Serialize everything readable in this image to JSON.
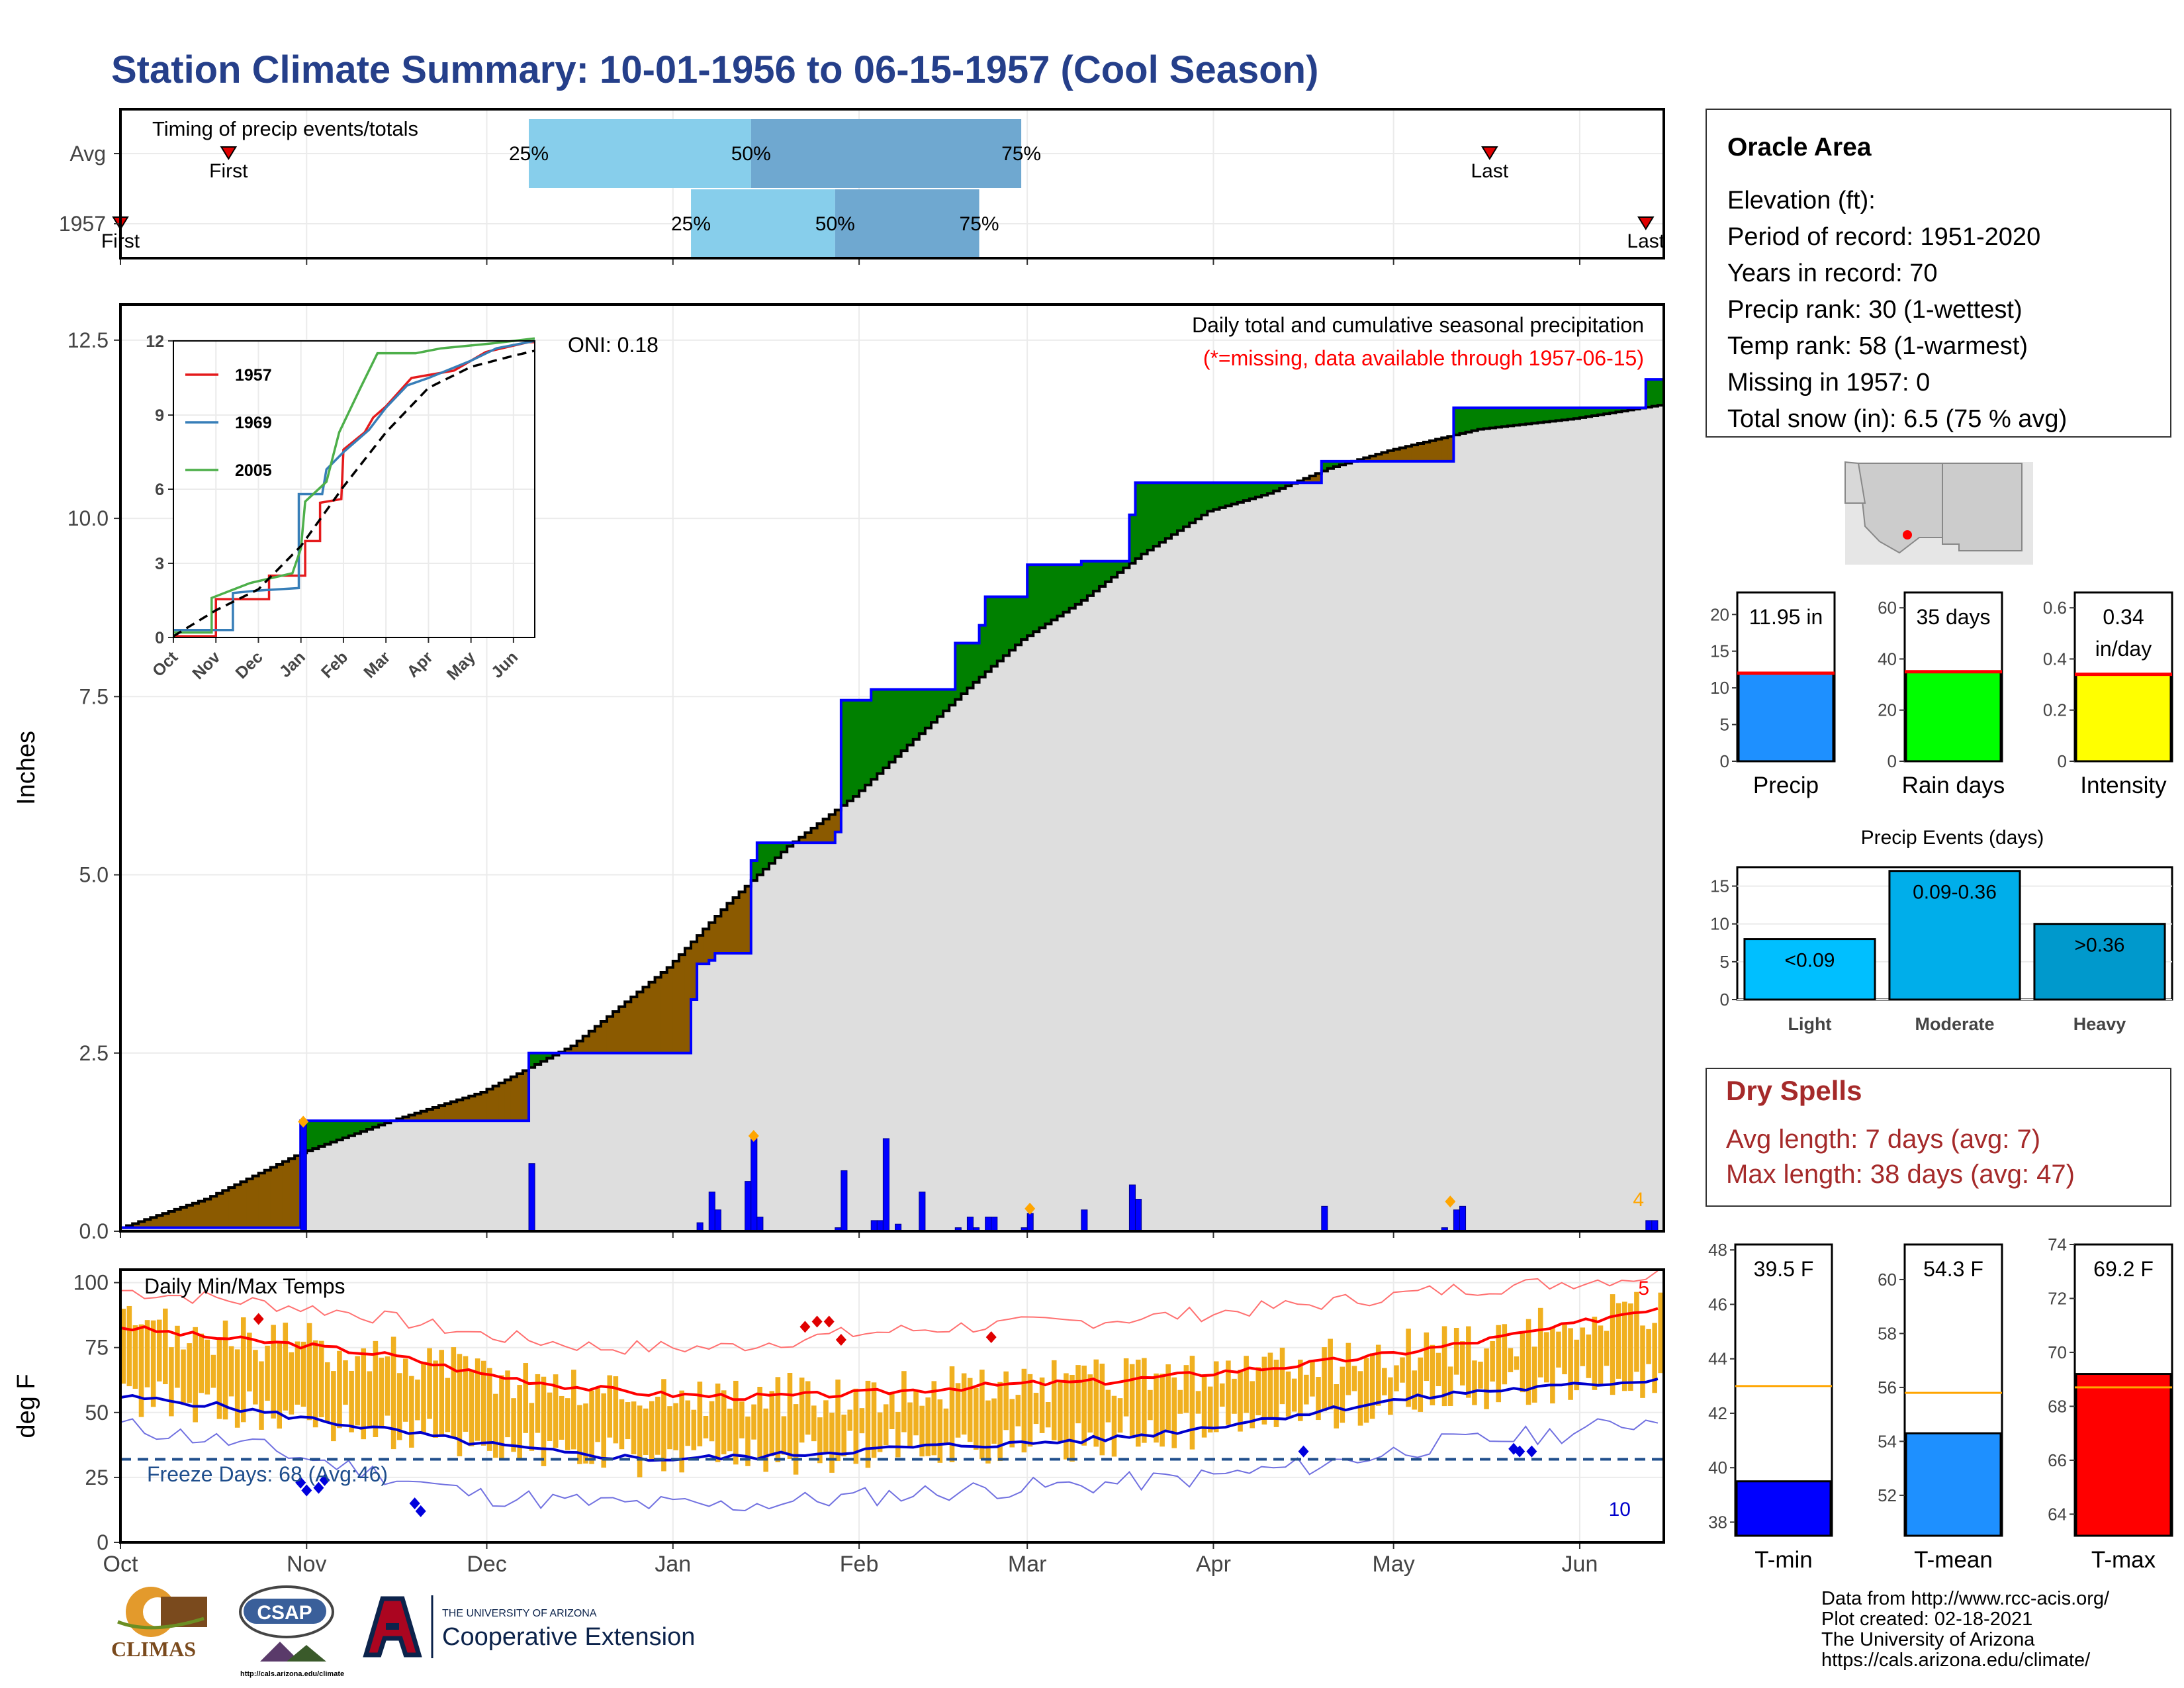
{
  "title": "Station Climate Summary: 10-01-1956 to 06-15-1957 (Cool Season)",
  "colors": {
    "title": "#253f8a",
    "cumulative_fill": "#dedede",
    "surplus": "#008000",
    "deficit": "#8b5a00",
    "obs_line": "#0000ff",
    "temp_bar": "#f0b020",
    "avg_max": "#ff0000",
    "avg_min": "#0000cc",
    "record_max": "#ff7070",
    "record_min": "#7070e0",
    "freeze_line": "#1f4e8c",
    "q_light": "#87ceeb",
    "q_dark": "#6fa8d0"
  },
  "months": [
    "Oct",
    "Nov",
    "Dec",
    "Jan",
    "Feb",
    "Mar",
    "Apr",
    "May",
    "Jun"
  ],
  "chart_data": [
    {
      "id": "timing",
      "type": "bar",
      "label": "Timing of precip events/totals",
      "rows": [
        {
          "name": "Avg",
          "first": "Oct 19",
          "last": "May 17",
          "q25": "Dec 8",
          "q50": "Jan 14",
          "q75": "Feb 28"
        },
        {
          "name": "1957",
          "first": "Oct 1",
          "last": "Jun 12",
          "q25": "Jan 4",
          "q50": "Jan 28",
          "q75": "Feb 21"
        }
      ],
      "marker_labels": {
        "first": "First",
        "last": "Last",
        "q25": "25%",
        "q50": "50%",
        "q75": "75%"
      }
    },
    {
      "id": "precip",
      "type": "area",
      "title": "Daily total and cumulative seasonal precipitation",
      "subtitle": "(*=missing, data available through 1957-06-15)",
      "ylabel": "Inches",
      "ylim": [
        0,
        13
      ],
      "yticks": [
        0.0,
        2.5,
        5.0,
        7.5,
        10.0,
        12.5
      ],
      "oni": "ONI: 0.18",
      "avg_cumulative": [
        [
          "1956-10-01",
          0.05
        ],
        [
          "1956-10-15",
          0.45
        ],
        [
          "1956-10-31",
          1.1
        ],
        [
          "1956-11-15",
          1.55
        ],
        [
          "1956-11-30",
          1.95
        ],
        [
          "1956-12-15",
          2.6
        ],
        [
          "1956-12-31",
          3.7
        ],
        [
          "1957-01-10",
          4.6
        ],
        [
          "1957-01-20",
          5.4
        ],
        [
          "1957-01-31",
          6.1
        ],
        [
          "1957-02-10",
          6.9
        ],
        [
          "1957-02-20",
          7.7
        ],
        [
          "1957-02-28",
          8.3
        ],
        [
          "1957-03-10",
          8.85
        ],
        [
          "1957-03-20",
          9.5
        ],
        [
          "1957-03-31",
          10.1
        ],
        [
          "1957-04-10",
          10.35
        ],
        [
          "1957-04-20",
          10.7
        ],
        [
          "1957-04-30",
          10.95
        ],
        [
          "1957-05-15",
          11.25
        ],
        [
          "1957-05-31",
          11.4
        ],
        [
          "1957-06-15",
          11.6
        ]
      ],
      "obs_cumulative": [
        [
          "1956-10-01",
          0.05
        ],
        [
          "1956-10-30",
          0.05
        ],
        [
          "1956-10-31",
          1.55
        ],
        [
          "1956-11-30",
          1.55
        ],
        [
          "1956-12-07",
          1.55
        ],
        [
          "1956-12-08",
          2.5
        ],
        [
          "1957-01-03",
          2.5
        ],
        [
          "1957-01-04",
          3.25
        ],
        [
          "1957-01-05",
          3.75
        ],
        [
          "1957-01-07",
          3.8
        ],
        [
          "1957-01-08",
          3.9
        ],
        [
          "1957-01-13",
          3.9
        ],
        [
          "1957-01-14",
          5.2
        ],
        [
          "1957-01-15",
          5.45
        ],
        [
          "1957-01-20",
          5.45
        ],
        [
          "1957-01-28",
          5.6
        ],
        [
          "1957-01-29",
          7.45
        ],
        [
          "1957-02-03",
          7.6
        ],
        [
          "1957-02-04",
          7.6
        ],
        [
          "1957-02-16",
          7.6
        ],
        [
          "1957-02-17",
          8.25
        ],
        [
          "1957-02-21",
          8.5
        ],
        [
          "1957-02-22",
          8.9
        ],
        [
          "1957-02-28",
          8.9
        ],
        [
          "1957-03-01",
          9.35
        ],
        [
          "1957-03-09",
          9.35
        ],
        [
          "1957-03-10",
          9.4
        ],
        [
          "1957-03-17",
          9.4
        ],
        [
          "1957-03-18",
          10.05
        ],
        [
          "1957-03-19",
          10.5
        ],
        [
          "1957-04-18",
          10.5
        ],
        [
          "1957-04-19",
          10.8
        ],
        [
          "1957-05-10",
          10.8
        ],
        [
          "1957-05-11",
          11.55
        ],
        [
          "1957-06-11",
          11.55
        ],
        [
          "1957-06-12",
          11.95
        ],
        [
          "1957-06-15",
          11.95
        ]
      ],
      "daily": [
        [
          "1956-10-31",
          1.5
        ],
        [
          "1956-12-08",
          0.95
        ],
        [
          "1957-01-05",
          0.12
        ],
        [
          "1957-01-07",
          0.55
        ],
        [
          "1957-01-08",
          0.3
        ],
        [
          "1957-01-13",
          0.7
        ],
        [
          "1957-01-14",
          1.3
        ],
        [
          "1957-01-15",
          0.2
        ],
        [
          "1957-01-28",
          0.05
        ],
        [
          "1957-01-29",
          0.85
        ],
        [
          "1957-02-03",
          0.15
        ],
        [
          "1957-02-04",
          0.15
        ],
        [
          "1957-02-05",
          1.3
        ],
        [
          "1957-02-07",
          0.1
        ],
        [
          "1957-02-11",
          0.55
        ],
        [
          "1957-02-17",
          0.05
        ],
        [
          "1957-02-19",
          0.2
        ],
        [
          "1957-02-20",
          0.05
        ],
        [
          "1957-02-22",
          0.2
        ],
        [
          "1957-02-23",
          0.2
        ],
        [
          "1957-02-28",
          0.05
        ],
        [
          "1957-03-01",
          0.25
        ],
        [
          "1957-03-10",
          0.3
        ],
        [
          "1957-03-18",
          0.65
        ],
        [
          "1957-03-19",
          0.45
        ],
        [
          "1957-04-19",
          0.35
        ],
        [
          "1957-05-09",
          0.05
        ],
        [
          "1957-05-11",
          0.3
        ],
        [
          "1957-05-12",
          0.35
        ],
        [
          "1957-06-12",
          0.15
        ],
        [
          "1957-06-13",
          0.15
        ]
      ],
      "corner_count": "4",
      "inset": {
        "type": "line",
        "ylim": [
          0,
          12
        ],
        "yticks": [
          0,
          3,
          6,
          9,
          12
        ],
        "series": [
          {
            "name": "1957",
            "color": "#e41a1c",
            "points": [
              [
                0,
                0.05
              ],
              [
                1,
                0.05
              ],
              [
                1,
                1.55
              ],
              [
                2,
                1.55
              ],
              [
                2.25,
                1.55
              ],
              [
                2.25,
                2.5
              ],
              [
                3.1,
                2.5
              ],
              [
                3.1,
                3.9
              ],
              [
                3.45,
                3.9
              ],
              [
                3.45,
                5.45
              ],
              [
                3.95,
                5.6
              ],
              [
                4,
                7.6
              ],
              [
                4.5,
                8.3
              ],
              [
                4.7,
                8.9
              ],
              [
                5,
                9.35
              ],
              [
                5.6,
                10.5
              ],
              [
                6.6,
                10.8
              ],
              [
                7.35,
                11.55
              ],
              [
                8.35,
                11.95
              ],
              [
                8.5,
                11.95
              ]
            ]
          },
          {
            "name": "1969",
            "color": "#377eb8",
            "points": [
              [
                0,
                0.3
              ],
              [
                1.4,
                0.3
              ],
              [
                1.4,
                1.8
              ],
              [
                2,
                1.9
              ],
              [
                2.95,
                2.0
              ],
              [
                2.95,
                5.8
              ],
              [
                3.5,
                5.8
              ],
              [
                3.6,
                6.8
              ],
              [
                4,
                7.5
              ],
              [
                4.6,
                8.4
              ],
              [
                5,
                9.3
              ],
              [
                5.5,
                10.2
              ],
              [
                6,
                10.5
              ],
              [
                7,
                11.2
              ],
              [
                7.6,
                11.7
              ],
              [
                8.5,
                12.0
              ]
            ]
          },
          {
            "name": "2005",
            "color": "#4daf4a",
            "points": [
              [
                0,
                0.2
              ],
              [
                0.9,
                0.2
              ],
              [
                0.9,
                1.6
              ],
              [
                1.8,
                2.2
              ],
              [
                2.8,
                2.6
              ],
              [
                3,
                3.6
              ],
              [
                3.1,
                5.5
              ],
              [
                3.6,
                6.3
              ],
              [
                3.9,
                8.3
              ],
              [
                4.4,
                10.1
              ],
              [
                4.8,
                11.5
              ],
              [
                5.7,
                11.5
              ],
              [
                6.3,
                11.7
              ],
              [
                6.9,
                11.8
              ],
              [
                7.5,
                11.9
              ],
              [
                8.5,
                12.1
              ]
            ]
          }
        ],
        "avg_points": [
          [
            0,
            0.05
          ],
          [
            1,
            1.1
          ],
          [
            2,
            1.95
          ],
          [
            3,
            3.7
          ],
          [
            4,
            6.1
          ],
          [
            5,
            8.3
          ],
          [
            6,
            10.1
          ],
          [
            7,
            10.95
          ],
          [
            8,
            11.4
          ],
          [
            8.5,
            11.6
          ]
        ]
      }
    },
    {
      "id": "temps",
      "type": "bar",
      "label": "Daily Min/Max Temps",
      "ylabel": "deg F",
      "ylim": [
        0,
        105
      ],
      "yticks": [
        0,
        25,
        50,
        75,
        100
      ],
      "freeze_label": "Freeze Days: 68 (Avg:46)",
      "freeze_threshold": 32,
      "count_top": "5",
      "count_bottom": "10",
      "avg_max_points": [
        [
          0,
          83
        ],
        [
          15,
          79
        ],
        [
          30,
          76
        ],
        [
          45,
          72
        ],
        [
          60,
          65
        ],
        [
          75,
          60
        ],
        [
          90,
          57
        ],
        [
          105,
          56
        ],
        [
          120,
          57
        ],
        [
          135,
          59
        ],
        [
          150,
          61
        ],
        [
          165,
          62
        ],
        [
          180,
          65
        ],
        [
          195,
          68
        ],
        [
          210,
          72
        ],
        [
          225,
          77
        ],
        [
          240,
          83
        ],
        [
          250,
          88
        ],
        [
          257,
          91
        ]
      ],
      "avg_min_points": [
        [
          0,
          56
        ],
        [
          15,
          53
        ],
        [
          30,
          48
        ],
        [
          45,
          43
        ],
        [
          60,
          38
        ],
        [
          75,
          34
        ],
        [
          90,
          32
        ],
        [
          105,
          33
        ],
        [
          120,
          35
        ],
        [
          135,
          37
        ],
        [
          150,
          38
        ],
        [
          165,
          40
        ],
        [
          180,
          44
        ],
        [
          195,
          49
        ],
        [
          210,
          54
        ],
        [
          225,
          58
        ],
        [
          240,
          60
        ],
        [
          257,
          63
        ]
      ],
      "record_max_points": [
        [
          0,
          97
        ],
        [
          20,
          93
        ],
        [
          40,
          88
        ],
        [
          60,
          80
        ],
        [
          80,
          75
        ],
        [
          100,
          75
        ],
        [
          120,
          80
        ],
        [
          140,
          83
        ],
        [
          160,
          85
        ],
        [
          180,
          88
        ],
        [
          200,
          92
        ],
        [
          220,
          97
        ],
        [
          240,
          100
        ],
        [
          257,
          103
        ]
      ],
      "record_min_points": [
        [
          0,
          45
        ],
        [
          20,
          38
        ],
        [
          40,
          28
        ],
        [
          60,
          18
        ],
        [
          80,
          15
        ],
        [
          100,
          14
        ],
        [
          120,
          17
        ],
        [
          140,
          20
        ],
        [
          160,
          22
        ],
        [
          180,
          25
        ],
        [
          200,
          30
        ],
        [
          220,
          38
        ],
        [
          240,
          42
        ],
        [
          257,
          48
        ]
      ]
    },
    {
      "id": "precip_summary",
      "type": "bar",
      "bars": [
        {
          "name": "Precip",
          "value": 11.95,
          "avg": 12.0,
          "label": "11.95 in",
          "ylim": [
            0,
            23
          ],
          "yticks": [
            0,
            5,
            10,
            15,
            20
          ],
          "color": "#1e90ff"
        },
        {
          "name": "Rain days",
          "value": 35,
          "avg": 35,
          "label": "35 days",
          "ylim": [
            0,
            66
          ],
          "yticks": [
            0,
            20,
            40,
            60
          ],
          "color": "#00ff00"
        },
        {
          "name": "Intensity",
          "value": 0.34,
          "avg": 0.34,
          "label": "0.34",
          "label2": "in/day",
          "ylim": [
            0,
            0.66
          ],
          "yticks": [
            0.0,
            0.2,
            0.4,
            0.6
          ],
          "color": "#ffff00"
        }
      ]
    },
    {
      "id": "precip_events",
      "type": "bar",
      "title": "Precip Events (days)",
      "categories": [
        "Light",
        "Moderate",
        "Heavy"
      ],
      "values": [
        8,
        17,
        10
      ],
      "bar_labels": [
        "<0.09",
        "0.09-0.36",
        ">0.36"
      ],
      "ylim": [
        0,
        17.5
      ],
      "yticks": [
        0,
        5,
        10,
        15
      ],
      "colors": [
        "#00bfff",
        "#00aeea",
        "#0099cc"
      ]
    },
    {
      "id": "temp_summary",
      "type": "bar",
      "bars": [
        {
          "name": "T-min",
          "value": 39.5,
          "avg": 43.0,
          "label": "39.5 F",
          "ylim": [
            37.5,
            48.2
          ],
          "yticks": [
            38,
            40,
            42,
            44,
            46,
            48
          ],
          "color": "#0000ff"
        },
        {
          "name": "T-mean",
          "value": 54.3,
          "avg": 55.8,
          "label": "54.3 F",
          "ylim": [
            50.5,
            61.3
          ],
          "yticks": [
            52,
            54,
            56,
            58,
            60
          ],
          "color": "#1e90ff"
        },
        {
          "name": "T-max",
          "value": 69.2,
          "avg": 68.7,
          "label": "69.2 F",
          "ylim": [
            63.2,
            74.0
          ],
          "yticks": [
            64,
            66,
            68,
            70,
            72,
            74
          ],
          "color": "#ff0000"
        }
      ]
    }
  ],
  "station": {
    "name": "Oracle Area",
    "lines": [
      "Elevation (ft):",
      "Period of record: 1951-2020",
      "Years in record: 70",
      "Precip rank: 30 (1-wettest)",
      "Temp rank: 58 (1-warmest)",
      "Missing in 1957: 0",
      "Total snow (in): 6.5 (75 % avg)"
    ]
  },
  "dry_spells": {
    "title": "Dry Spells",
    "avg_length": "Avg length: 7 days (avg: 7)",
    "max_length": "Max length: 38 days (avg: 47)"
  },
  "footer": {
    "lines": [
      "Data from http://www.rcc-acis.org/",
      "Plot created: 02-18-2021",
      "The University of Arizona",
      "https://cals.arizona.edu/climate/"
    ]
  },
  "logos": {
    "climas": "CLIMAS",
    "csap": "CSAP",
    "csap_url": "http://cals.arizona.edu/climate",
    "ua_top": "THE UNIVERSITY OF ARIZONA",
    "ua_bottom": "Cooperative Extension"
  }
}
